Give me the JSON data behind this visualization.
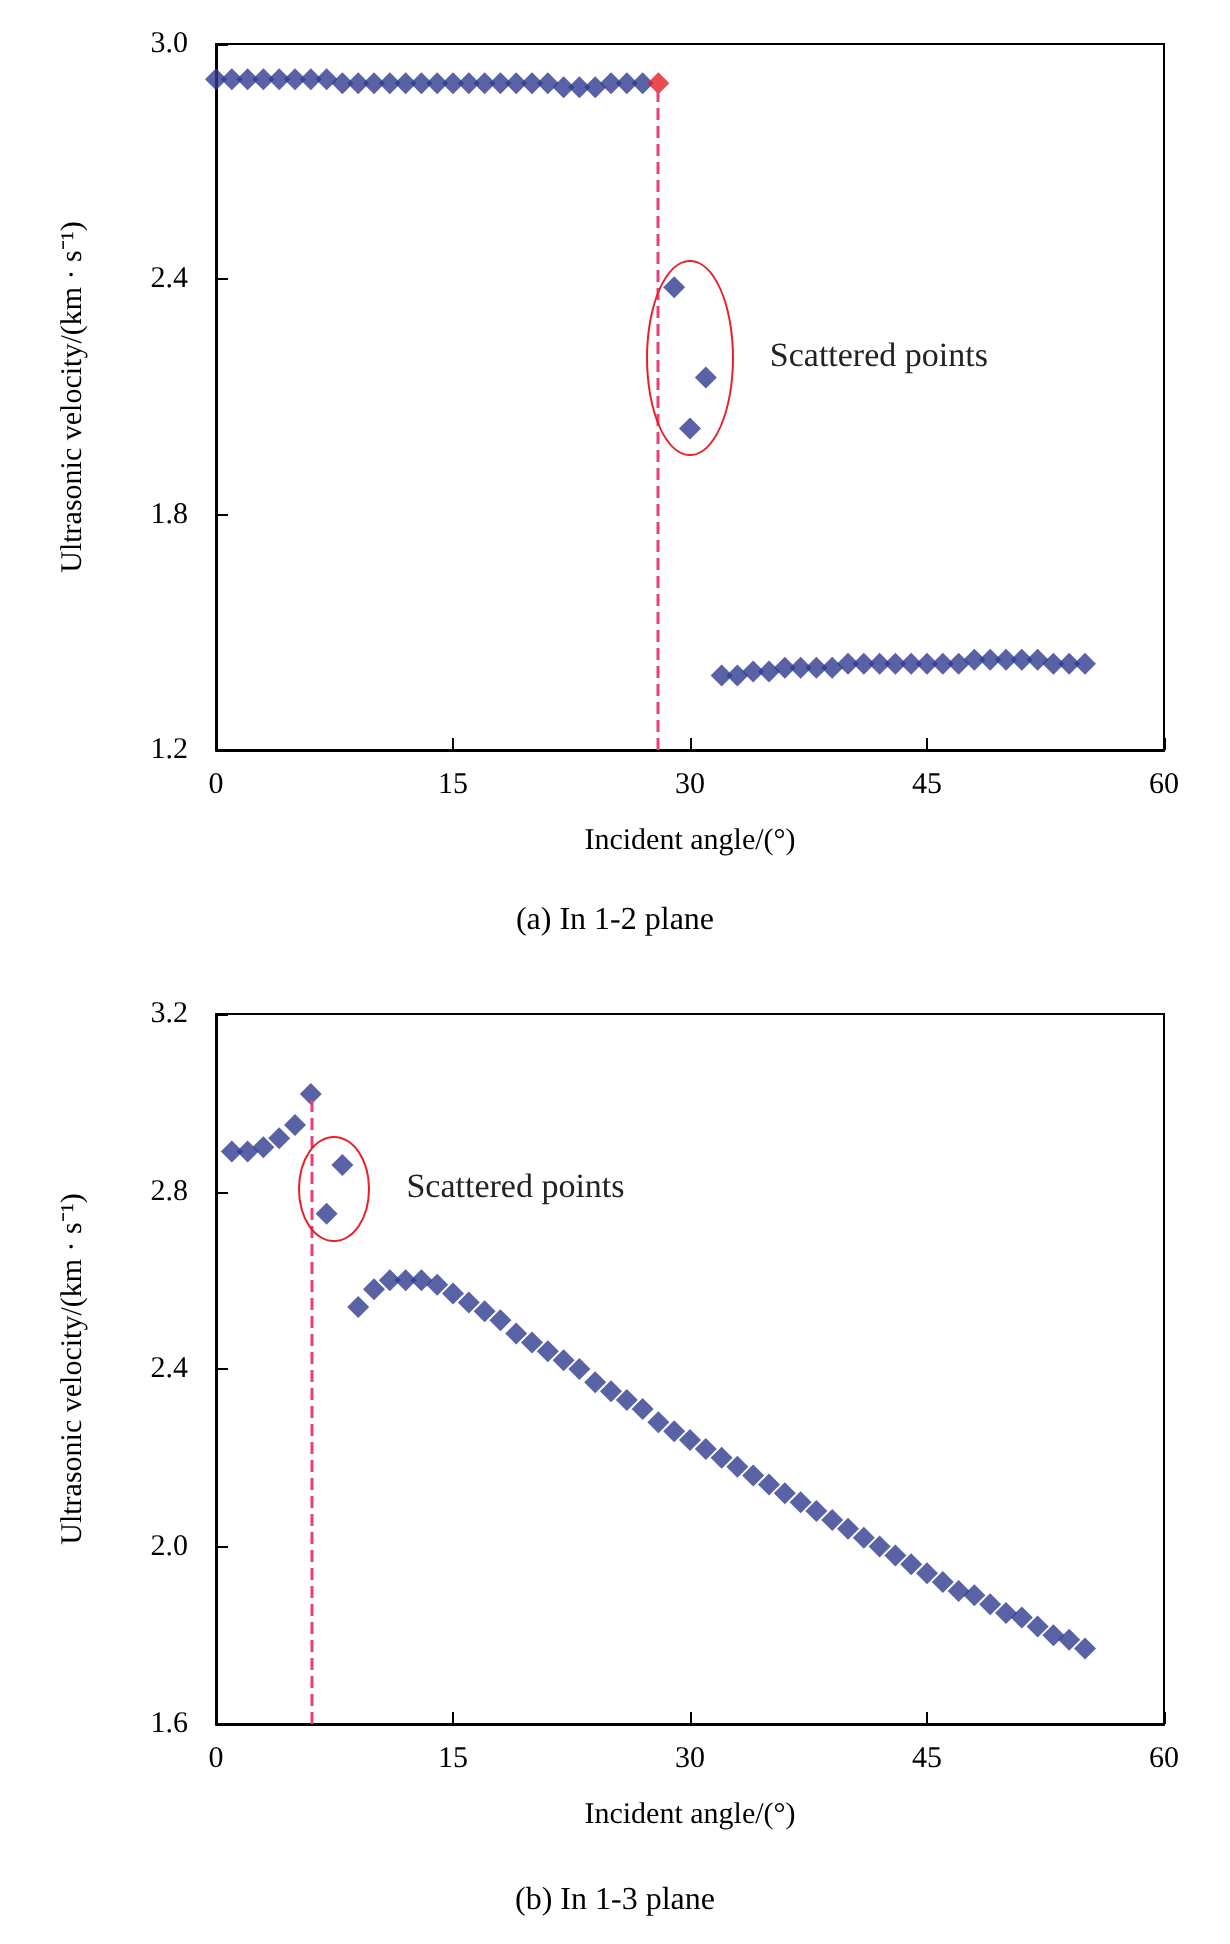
{
  "chart_data": [
    {
      "type": "scatter",
      "subtitle": "(a) In 1-2 plane",
      "xlabel": "Incident angle/(°)",
      "ylabel": "Ultrasonic velocity/(km · s⁻¹)",
      "marker": "diamond",
      "grid": false,
      "xlim": [
        0,
        60
      ],
      "xticks": [
        0,
        15,
        30,
        45,
        60
      ],
      "ylim": [
        1.2,
        3.0
      ],
      "yticks": [
        1.2,
        1.8,
        2.4,
        {
          "value": 3,
          "label": "3.0"
        }
      ],
      "series": [
        {
          "color": "#2e3b8f",
          "x": [
            0,
            1,
            2,
            3,
            4,
            5,
            6,
            7,
            8,
            9,
            10,
            11,
            12,
            13,
            14,
            15,
            16,
            17,
            18,
            19,
            20,
            21,
            22,
            23,
            24,
            25,
            26,
            27,
            29,
            30,
            31,
            32,
            33,
            34,
            35,
            36,
            37,
            38,
            39,
            40,
            41,
            42,
            43,
            44,
            45,
            46,
            47,
            48,
            49,
            50,
            51,
            52,
            53,
            54,
            55
          ],
          "values": [
            2.91,
            2.91,
            2.91,
            2.91,
            2.91,
            2.91,
            2.91,
            2.91,
            2.9,
            2.9,
            2.9,
            2.9,
            2.9,
            2.9,
            2.9,
            2.9,
            2.9,
            2.9,
            2.9,
            2.9,
            2.9,
            2.9,
            2.89,
            2.89,
            2.89,
            2.9,
            2.9,
            2.9,
            2.38,
            2.02,
            2.15,
            1.39,
            1.39,
            1.4,
            1.4,
            1.41,
            1.41,
            1.41,
            1.41,
            1.42,
            1.42,
            1.42,
            1.42,
            1.42,
            1.42,
            1.42,
            1.42,
            1.43,
            1.43,
            1.43,
            1.43,
            1.43,
            1.42,
            1.42,
            1.42
          ]
        },
        {
          "color": "#e41e26",
          "x": [
            28
          ],
          "values": [
            2.9
          ]
        }
      ],
      "ref_lines": [
        {
          "axis": "x",
          "value": 28,
          "color": "#e8407a",
          "line_style": "dashed"
        }
      ],
      "annotations": [
        "Scattered points"
      ]
    },
    {
      "type": "scatter",
      "subtitle": "(b) In 1-3 plane",
      "xlabel": "Incident angle/(°)",
      "ylabel": "Ultrasonic velocity/(km · s⁻¹)",
      "marker": "diamond",
      "grid": false,
      "xlim": [
        0,
        60
      ],
      "xticks": [
        0,
        15,
        30,
        45,
        60
      ],
      "ylim": [
        1.6,
        3.2
      ],
      "yticks": [
        1.6,
        {
          "value": 2,
          "label": "2.0"
        },
        2.4,
        2.8,
        3.2
      ],
      "series": [
        {
          "color": "#2e3b8f",
          "x": [
            1,
            2,
            3,
            4,
            5,
            6,
            7,
            8,
            9,
            10,
            11,
            12,
            13,
            14,
            15,
            16,
            17,
            18,
            19,
            20,
            21,
            22,
            23,
            24,
            25,
            26,
            27,
            28,
            29,
            30,
            31,
            32,
            33,
            34,
            35,
            36,
            37,
            38,
            39,
            40,
            41,
            42,
            43,
            44,
            45,
            46,
            47,
            48,
            49,
            50,
            51,
            52,
            53,
            54,
            55
          ],
          "values": [
            2.89,
            2.89,
            2.9,
            2.92,
            2.95,
            3.02,
            2.75,
            2.86,
            2.54,
            2.58,
            2.6,
            2.6,
            2.6,
            2.59,
            2.57,
            2.55,
            2.53,
            2.51,
            2.48,
            2.46,
            2.44,
            2.42,
            2.4,
            2.37,
            2.35,
            2.33,
            2.31,
            2.28,
            2.26,
            2.24,
            2.22,
            2.2,
            2.18,
            2.16,
            2.14,
            2.12,
            2.1,
            2.08,
            2.06,
            2.04,
            2.02,
            2.0,
            1.98,
            1.96,
            1.94,
            1.92,
            1.9,
            1.89,
            1.87,
            1.85,
            1.84,
            1.82,
            1.8,
            1.79,
            1.77
          ]
        }
      ],
      "ref_lines": [
        {
          "axis": "x",
          "value": 6,
          "color": "#e8407a",
          "line_style": "dashed"
        }
      ],
      "annotations": [
        "Scattered points"
      ]
    }
  ]
}
